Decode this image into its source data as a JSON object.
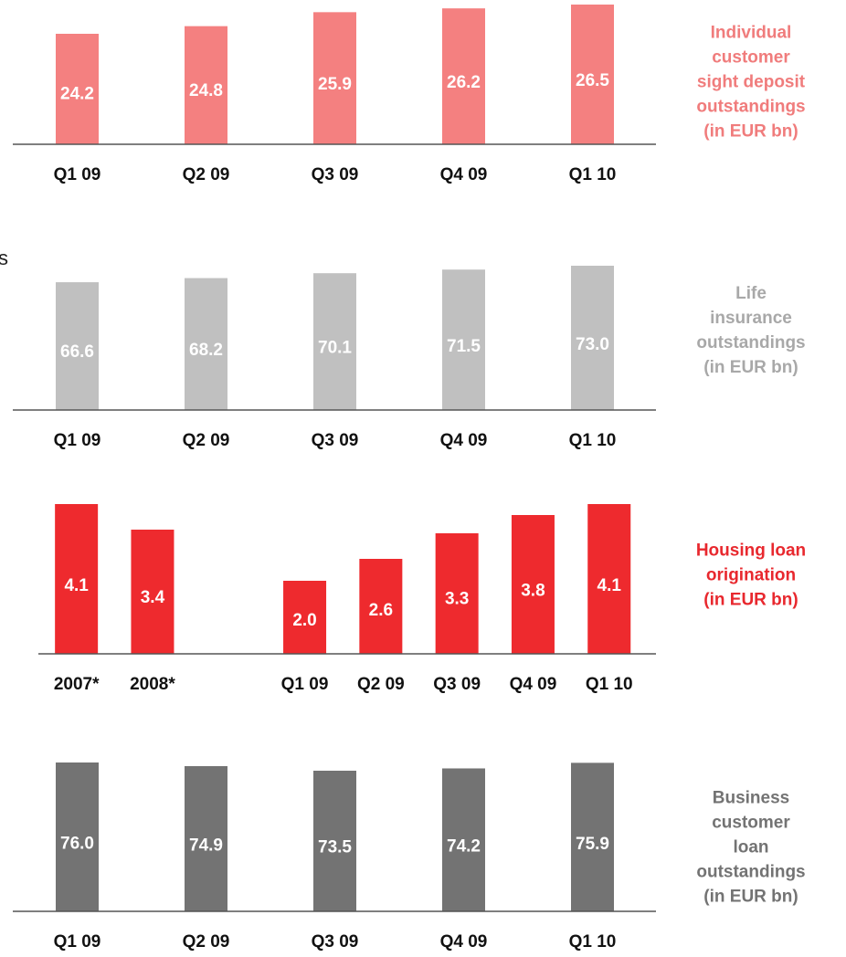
{
  "cropped_text": "s",
  "chart_data": [
    {
      "type": "bar",
      "title": "Individual\ncustomer\nsight deposit\noutstandings\n(in EUR bn)",
      "categories": [
        "Q1 09",
        "Q2 09",
        "Q3 09",
        "Q4 09",
        "Q1 10"
      ],
      "values": [
        24.2,
        24.8,
        25.9,
        26.2,
        26.5
      ],
      "value_labels": [
        "24.2",
        "24.8",
        "25.9",
        "26.2",
        "26.5"
      ],
      "color": "#f48080",
      "title_color": "#f07c7c",
      "ylim": [
        15.5,
        26.5
      ]
    },
    {
      "type": "bar",
      "title": "Life\ninsurance\noutstandings\n(in EUR bn)",
      "categories": [
        "Q1 09",
        "Q2 09",
        "Q3 09",
        "Q4 09",
        "Q1 10"
      ],
      "values": [
        66.6,
        68.2,
        70.1,
        71.5,
        73.0
      ],
      "value_labels": [
        "66.6",
        "68.2",
        "70.1",
        "71.5",
        "73.0"
      ],
      "color": "#c0c0c0",
      "title_color": "#a8a8a8",
      "ylim": [
        17,
        73
      ]
    },
    {
      "type": "bar",
      "title": "Housing loan\norigination\n(in EUR bn)",
      "categories": [
        "2007*",
        "2008*",
        null,
        "Q1 09",
        "Q2 09",
        "Q3 09",
        "Q4 09",
        "Q1 10"
      ],
      "values": [
        4.1,
        3.4,
        null,
        2.0,
        2.6,
        3.3,
        3.8,
        4.1
      ],
      "value_labels": [
        "4.1",
        "3.4",
        null,
        "2.0",
        "2.6",
        "3.3",
        "3.8",
        "4.1"
      ],
      "color": "#ee2a2e",
      "title_color": "#e8282e",
      "ylim": [
        0,
        4.1
      ]
    },
    {
      "type": "bar",
      "title": "Business\ncustomer\nloan\noutstandings\n(in EUR bn)",
      "categories": [
        "Q1 09",
        "Q2 09",
        "Q3 09",
        "Q4 09",
        "Q1 10"
      ],
      "values": [
        76.0,
        74.9,
        73.5,
        74.2,
        75.9
      ],
      "value_labels": [
        "76.0",
        "74.9",
        "73.5",
        "74.2",
        "75.9"
      ],
      "color": "#737373",
      "title_color": "#737373",
      "ylim": [
        30.7,
        76.0
      ]
    }
  ]
}
